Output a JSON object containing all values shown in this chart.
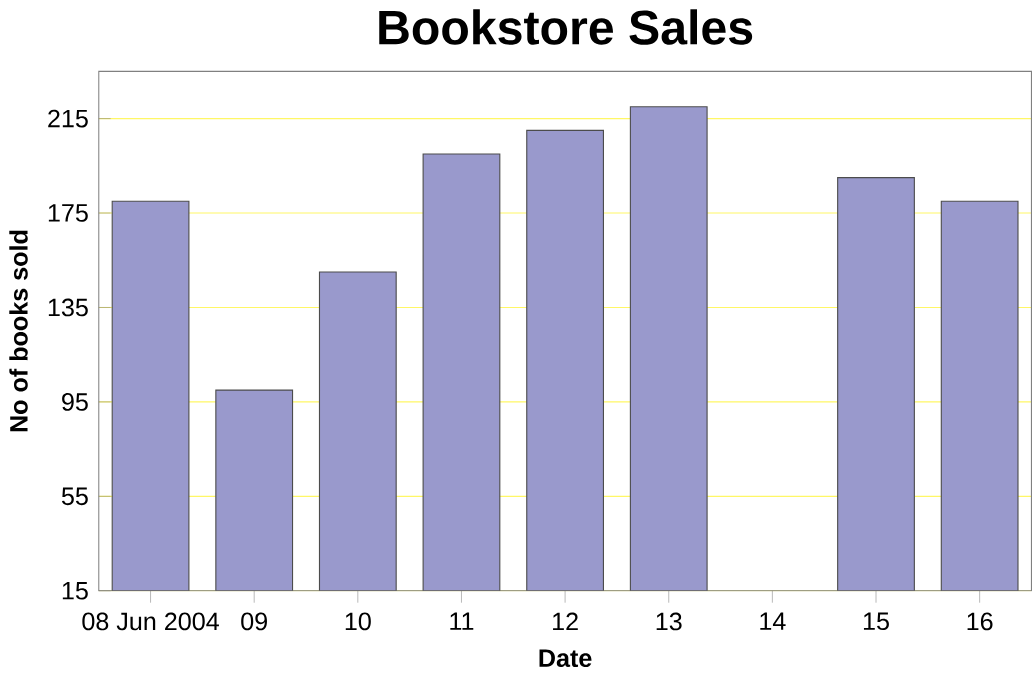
{
  "chart_data": {
    "type": "bar",
    "title": "Bookstore Sales",
    "xlabel": "Date",
    "ylabel": "No of books sold",
    "categories": [
      "08 Jun 2004",
      "09",
      "10",
      "11",
      "12",
      "13",
      "14",
      "15",
      "16"
    ],
    "values": [
      180,
      100,
      150,
      200,
      210,
      220,
      null,
      190,
      180
    ],
    "color": "#9999cc",
    "ylim": [
      15,
      235
    ],
    "yticks": [
      15,
      55,
      95,
      135,
      175,
      215
    ],
    "grid": "y"
  }
}
